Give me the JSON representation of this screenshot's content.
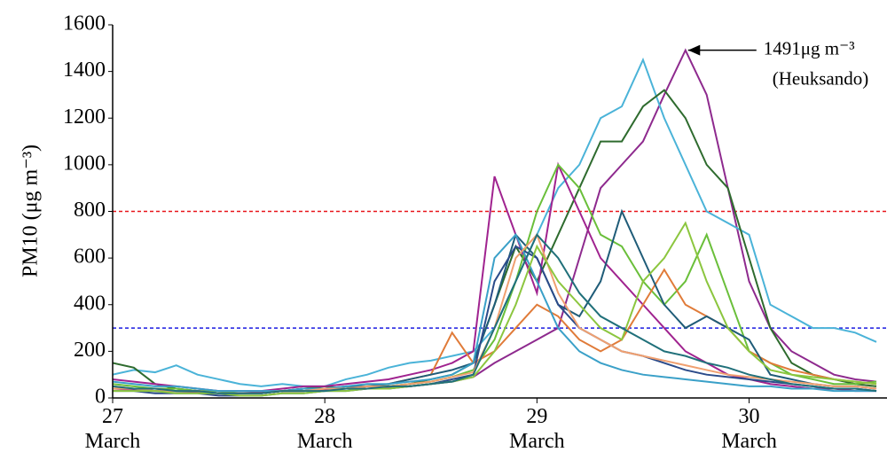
{
  "chart_data": {
    "type": "line",
    "y_label": "PM10  (μg m⁻³)",
    "annotation": "1491μg m⁻³",
    "annotation_sub": "(Heuksando)",
    "x": [
      27.0,
      27.1,
      27.2,
      27.3,
      27.4,
      27.5,
      27.6,
      27.7,
      27.8,
      27.9,
      28.0,
      28.1,
      28.2,
      28.3,
      28.4,
      28.5,
      28.6,
      28.7,
      28.8,
      28.9,
      29.0,
      29.1,
      29.2,
      29.3,
      29.4,
      29.5,
      29.6,
      29.7,
      29.8,
      29.9,
      30.0,
      30.1,
      30.2,
      30.3,
      30.4,
      30.5,
      30.6
    ],
    "xlim": [
      27,
      30.65
    ],
    "xticks": [
      {
        "value": 27,
        "label": "27 March"
      },
      {
        "value": 28,
        "label": "28 March"
      },
      {
        "value": 29,
        "label": "29 March"
      },
      {
        "value": 30,
        "label": "30 March"
      }
    ],
    "ylim": [
      0,
      1600
    ],
    "yticks": [
      0,
      200,
      400,
      600,
      800,
      1000,
      1200,
      1400,
      1600
    ],
    "grid": false,
    "reference_lines": [
      {
        "value": 800,
        "color": "#e8141a"
      },
      {
        "value": 300,
        "color": "#1a1ae0"
      }
    ],
    "series": [
      {
        "color": "#8e2a8e",
        "values": [
          40,
          35,
          30,
          30,
          25,
          20,
          20,
          25,
          30,
          30,
          35,
          40,
          40,
          45,
          50,
          60,
          70,
          90,
          150,
          200,
          250,
          300,
          600,
          900,
          1000,
          1100,
          1300,
          1491,
          1300,
          900,
          500,
          300,
          200,
          150,
          100,
          80,
          70
        ]
      },
      {
        "color": "#4ab3d8",
        "values": [
          100,
          120,
          110,
          140,
          100,
          80,
          60,
          50,
          60,
          50,
          50,
          80,
          100,
          130,
          150,
          160,
          180,
          200,
          300,
          500,
          700,
          900,
          1000,
          1200,
          1250,
          1450,
          1200,
          1000,
          800,
          750,
          700,
          400,
          350,
          300,
          300,
          280,
          240
        ]
      },
      {
        "color": "#2e6b2e",
        "values": [
          150,
          130,
          60,
          40,
          30,
          20,
          20,
          20,
          30,
          40,
          50,
          40,
          50,
          50,
          60,
          80,
          100,
          150,
          400,
          650,
          500,
          700,
          900,
          1100,
          1100,
          1250,
          1320,
          1200,
          1000,
          900,
          600,
          300,
          150,
          100,
          80,
          60,
          50
        ]
      },
      {
        "color": "#a0238f",
        "values": [
          80,
          70,
          60,
          50,
          40,
          30,
          30,
          30,
          40,
          50,
          50,
          60,
          70,
          80,
          100,
          120,
          150,
          200,
          950,
          700,
          450,
          1000,
          800,
          600,
          500,
          400,
          300,
          200,
          150,
          100,
          80,
          60,
          50,
          40,
          40,
          30,
          30
        ]
      },
      {
        "color": "#6abf3a",
        "values": [
          60,
          50,
          40,
          40,
          30,
          30,
          20,
          20,
          30,
          30,
          40,
          40,
          50,
          50,
          60,
          70,
          90,
          120,
          250,
          500,
          800,
          1000,
          900,
          700,
          650,
          500,
          400,
          500,
          700,
          450,
          200,
          150,
          100,
          80,
          60,
          60,
          70
        ]
      },
      {
        "color": "#e07b39",
        "values": [
          50,
          40,
          40,
          30,
          30,
          20,
          20,
          20,
          30,
          30,
          40,
          40,
          50,
          60,
          80,
          100,
          280,
          150,
          200,
          300,
          400,
          350,
          250,
          200,
          250,
          400,
          550,
          400,
          350,
          300,
          200,
          150,
          120,
          100,
          80,
          70,
          60
        ]
      },
      {
        "color": "#1f5c78",
        "values": [
          40,
          40,
          30,
          30,
          30,
          20,
          20,
          20,
          30,
          40,
          40,
          50,
          50,
          60,
          80,
          100,
          120,
          150,
          400,
          700,
          600,
          400,
          350,
          500,
          800,
          600,
          400,
          300,
          350,
          300,
          250,
          100,
          80,
          60,
          50,
          50,
          40
        ]
      },
      {
        "color": "#2b4b8a",
        "values": [
          30,
          30,
          20,
          20,
          20,
          10,
          10,
          10,
          20,
          20,
          30,
          30,
          40,
          40,
          50,
          60,
          80,
          100,
          500,
          650,
          600,
          400,
          300,
          250,
          200,
          180,
          150,
          120,
          100,
          90,
          80,
          70,
          60,
          50,
          40,
          40,
          30
        ]
      },
      {
        "color": "#3aa0c8",
        "values": [
          70,
          60,
          50,
          50,
          40,
          30,
          30,
          30,
          30,
          40,
          40,
          50,
          60,
          60,
          70,
          80,
          100,
          150,
          600,
          700,
          500,
          300,
          200,
          150,
          120,
          100,
          90,
          80,
          70,
          60,
          50,
          50,
          40,
          40,
          30,
          30,
          30
        ]
      },
      {
        "color": "#f0a070",
        "values": [
          40,
          40,
          30,
          30,
          30,
          20,
          20,
          20,
          30,
          30,
          40,
          40,
          50,
          50,
          60,
          70,
          90,
          110,
          300,
          600,
          700,
          450,
          300,
          250,
          200,
          180,
          160,
          140,
          120,
          100,
          90,
          80,
          70,
          60,
          50,
          50,
          40
        ]
      },
      {
        "color": "#8cc63f",
        "values": [
          30,
          30,
          30,
          20,
          20,
          20,
          10,
          10,
          20,
          20,
          30,
          30,
          40,
          40,
          50,
          60,
          70,
          90,
          200,
          400,
          650,
          500,
          400,
          300,
          250,
          500,
          600,
          750,
          500,
          300,
          200,
          120,
          100,
          90,
          80,
          70,
          60
        ]
      },
      {
        "color": "#20707a",
        "values": [
          50,
          40,
          40,
          30,
          30,
          20,
          20,
          20,
          30,
          30,
          30,
          40,
          40,
          50,
          50,
          60,
          70,
          100,
          300,
          500,
          700,
          600,
          450,
          350,
          300,
          250,
          200,
          180,
          150,
          130,
          100,
          80,
          60,
          50,
          40,
          40,
          30
        ]
      }
    ]
  }
}
